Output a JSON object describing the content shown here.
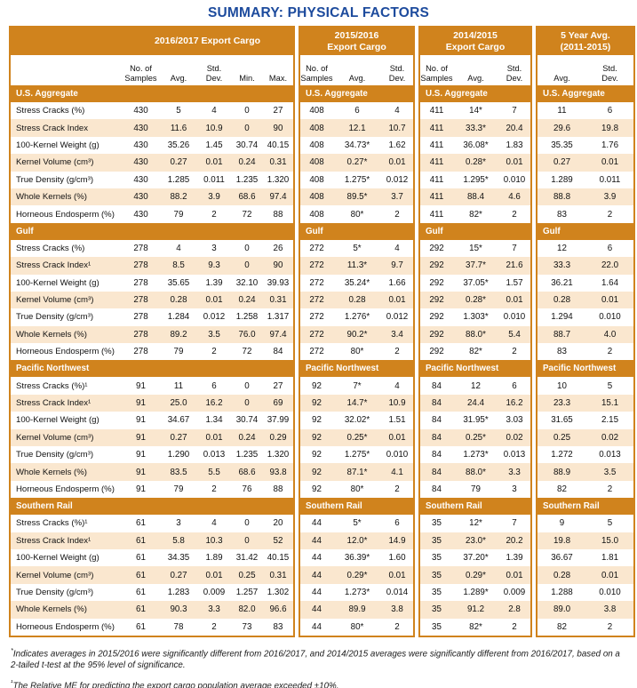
{
  "title": "SUMMARY: PHYSICAL FACTORS",
  "colors": {
    "accent_orange": "#d0831d",
    "row_peach": "#fae7cf",
    "title_blue": "#1d4b9d"
  },
  "panels": [
    {
      "key": "2016-2017",
      "header": "2016/2017 Export Cargo",
      "columns": [
        "No. of\nSamples",
        "Avg.",
        "Std.\nDev.",
        "Min.",
        "Max."
      ]
    },
    {
      "key": "2015-2016",
      "header": "2015/2016\nExport Cargo",
      "columns": [
        "No. of\nSamples",
        "Avg.",
        "Std.\nDev."
      ]
    },
    {
      "key": "2014-2015",
      "header": "2014/2015\nExport Cargo",
      "columns": [
        "No. of\nSamples",
        "Avg.",
        "Std.\nDev."
      ]
    },
    {
      "key": "5-year-avg",
      "header": "5 Year Avg.\n(2011-2015)",
      "columns": [
        "Avg.",
        "Std.\nDev."
      ]
    }
  ],
  "sections": [
    {
      "name": "U.S. Aggregate",
      "rows": [
        {
          "label": "Stress Cracks (%)",
          "values": {
            "p1": [
              "430",
              "5",
              "4",
              "0",
              "27"
            ],
            "p2": [
              "408",
              "6",
              "4"
            ],
            "p3": [
              "411",
              "14*",
              "7"
            ],
            "p4": [
              "11",
              "6"
            ]
          }
        },
        {
          "label": "Stress Crack Index",
          "values": {
            "p1": [
              "430",
              "11.6",
              "10.9",
              "0",
              "90"
            ],
            "p2": [
              "408",
              "12.1",
              "10.7"
            ],
            "p3": [
              "411",
              "33.3*",
              "20.4"
            ],
            "p4": [
              "29.6",
              "19.8"
            ]
          }
        },
        {
          "label": "100-Kernel Weight (g)",
          "values": {
            "p1": [
              "430",
              "35.26",
              "1.45",
              "30.74",
              "40.15"
            ],
            "p2": [
              "408",
              "34.73*",
              "1.62"
            ],
            "p3": [
              "411",
              "36.08*",
              "1.83"
            ],
            "p4": [
              "35.35",
              "1.76"
            ]
          }
        },
        {
          "label": "Kernel Volume (cm³)",
          "values": {
            "p1": [
              "430",
              "0.27",
              "0.01",
              "0.24",
              "0.31"
            ],
            "p2": [
              "408",
              "0.27*",
              "0.01"
            ],
            "p3": [
              "411",
              "0.28*",
              "0.01"
            ],
            "p4": [
              "0.27",
              "0.01"
            ]
          }
        },
        {
          "label": "True Density (g/cm³)",
          "values": {
            "p1": [
              "430",
              "1.285",
              "0.011",
              "1.235",
              "1.320"
            ],
            "p2": [
              "408",
              "1.275*",
              "0.012"
            ],
            "p3": [
              "411",
              "1.295*",
              "0.010"
            ],
            "p4": [
              "1.289",
              "0.011"
            ]
          }
        },
        {
          "label": "Whole Kernels (%)",
          "values": {
            "p1": [
              "430",
              "88.2",
              "3.9",
              "68.6",
              "97.4"
            ],
            "p2": [
              "408",
              "89.5*",
              "3.7"
            ],
            "p3": [
              "411",
              "88.4",
              "4.6"
            ],
            "p4": [
              "88.8",
              "3.9"
            ]
          }
        },
        {
          "label": "Horneous Endosperm (%)",
          "values": {
            "p1": [
              "430",
              "79",
              "2",
              "72",
              "88"
            ],
            "p2": [
              "408",
              "80*",
              "2"
            ],
            "p3": [
              "411",
              "82*",
              "2"
            ],
            "p4": [
              "83",
              "2"
            ]
          }
        }
      ]
    },
    {
      "name": "Gulf",
      "rows": [
        {
          "label": "Stress Cracks (%)",
          "values": {
            "p1": [
              "278",
              "4",
              "3",
              "0",
              "26"
            ],
            "p2": [
              "272",
              "5*",
              "4"
            ],
            "p3": [
              "292",
              "15*",
              "7"
            ],
            "p4": [
              "12",
              "6"
            ]
          }
        },
        {
          "label": "Stress Crack Index¹",
          "values": {
            "p1": [
              "278",
              "8.5",
              "9.3",
              "0",
              "90"
            ],
            "p2": [
              "272",
              "11.3*",
              "9.7"
            ],
            "p3": [
              "292",
              "37.7*",
              "21.6"
            ],
            "p4": [
              "33.3",
              "22.0"
            ]
          }
        },
        {
          "label": "100-Kernel Weight (g)",
          "values": {
            "p1": [
              "278",
              "35.65",
              "1.39",
              "32.10",
              "39.93"
            ],
            "p2": [
              "272",
              "35.24*",
              "1.66"
            ],
            "p3": [
              "292",
              "37.05*",
              "1.57"
            ],
            "p4": [
              "36.21",
              "1.64"
            ]
          }
        },
        {
          "label": "Kernel Volume (cm³)",
          "values": {
            "p1": [
              "278",
              "0.28",
              "0.01",
              "0.24",
              "0.31"
            ],
            "p2": [
              "272",
              "0.28",
              "0.01"
            ],
            "p3": [
              "292",
              "0.28*",
              "0.01"
            ],
            "p4": [
              "0.28",
              "0.01"
            ]
          }
        },
        {
          "label": "True Density (g/cm³)",
          "values": {
            "p1": [
              "278",
              "1.284",
              "0.012",
              "1.258",
              "1.317"
            ],
            "p2": [
              "272",
              "1.276*",
              "0.012"
            ],
            "p3": [
              "292",
              "1.303*",
              "0.010"
            ],
            "p4": [
              "1.294",
              "0.010"
            ]
          }
        },
        {
          "label": "Whole Kernels (%)",
          "values": {
            "p1": [
              "278",
              "89.2",
              "3.5",
              "76.0",
              "97.4"
            ],
            "p2": [
              "272",
              "90.2*",
              "3.4"
            ],
            "p3": [
              "292",
              "88.0*",
              "5.4"
            ],
            "p4": [
              "88.7",
              "4.0"
            ]
          }
        },
        {
          "label": "Horneous Endosperm (%)",
          "values": {
            "p1": [
              "278",
              "79",
              "2",
              "72",
              "84"
            ],
            "p2": [
              "272",
              "80*",
              "2"
            ],
            "p3": [
              "292",
              "82*",
              "2"
            ],
            "p4": [
              "83",
              "2"
            ]
          }
        }
      ]
    },
    {
      "name": "Pacific Northwest",
      "rows": [
        {
          "label": "Stress Cracks (%)¹",
          "values": {
            "p1": [
              "91",
              "11",
              "6",
              "0",
              "27"
            ],
            "p2": [
              "92",
              "7*",
              "4"
            ],
            "p3": [
              "84",
              "12",
              "6"
            ],
            "p4": [
              "10",
              "5"
            ]
          }
        },
        {
          "label": "Stress Crack Index¹",
          "values": {
            "p1": [
              "91",
              "25.0",
              "16.2",
              "0",
              "69"
            ],
            "p2": [
              "92",
              "14.7*",
              "10.9"
            ],
            "p3": [
              "84",
              "24.4",
              "16.2"
            ],
            "p4": [
              "23.3",
              "15.1"
            ]
          }
        },
        {
          "label": "100-Kernel Weight (g)",
          "values": {
            "p1": [
              "91",
              "34.67",
              "1.34",
              "30.74",
              "37.99"
            ],
            "p2": [
              "92",
              "32.02*",
              "1.51"
            ],
            "p3": [
              "84",
              "31.95*",
              "3.03"
            ],
            "p4": [
              "31.65",
              "2.15"
            ]
          }
        },
        {
          "label": "Kernel Volume (cm³)",
          "values": {
            "p1": [
              "91",
              "0.27",
              "0.01",
              "0.24",
              "0.29"
            ],
            "p2": [
              "92",
              "0.25*",
              "0.01"
            ],
            "p3": [
              "84",
              "0.25*",
              "0.02"
            ],
            "p4": [
              "0.25",
              "0.02"
            ]
          }
        },
        {
          "label": "True Density (g/cm³)",
          "values": {
            "p1": [
              "91",
              "1.290",
              "0.013",
              "1.235",
              "1.320"
            ],
            "p2": [
              "92",
              "1.275*",
              "0.010"
            ],
            "p3": [
              "84",
              "1.273*",
              "0.013"
            ],
            "p4": [
              "1.272",
              "0.013"
            ]
          }
        },
        {
          "label": "Whole Kernels (%)",
          "values": {
            "p1": [
              "91",
              "83.5",
              "5.5",
              "68.6",
              "93.8"
            ],
            "p2": [
              "92",
              "87.1*",
              "4.1"
            ],
            "p3": [
              "84",
              "88.0*",
              "3.3"
            ],
            "p4": [
              "88.9",
              "3.5"
            ]
          }
        },
        {
          "label": "Horneous Endosperm (%)",
          "values": {
            "p1": [
              "91",
              "79",
              "2",
              "76",
              "88"
            ],
            "p2": [
              "92",
              "80*",
              "2"
            ],
            "p3": [
              "84",
              "79",
              "3"
            ],
            "p4": [
              "82",
              "2"
            ]
          }
        }
      ]
    },
    {
      "name": "Southern Rail",
      "rows": [
        {
          "label": "Stress Cracks (%)¹",
          "values": {
            "p1": [
              "61",
              "3",
              "4",
              "0",
              "20"
            ],
            "p2": [
              "44",
              "5*",
              "6"
            ],
            "p3": [
              "35",
              "12*",
              "7"
            ],
            "p4": [
              "9",
              "5"
            ]
          }
        },
        {
          "label": "Stress Crack Index¹",
          "values": {
            "p1": [
              "61",
              "5.8",
              "10.3",
              "0",
              "52"
            ],
            "p2": [
              "44",
              "12.0*",
              "14.9"
            ],
            "p3": [
              "35",
              "23.0*",
              "20.2"
            ],
            "p4": [
              "19.8",
              "15.0"
            ]
          }
        },
        {
          "label": "100-Kernel Weight (g)",
          "values": {
            "p1": [
              "61",
              "34.35",
              "1.89",
              "31.42",
              "40.15"
            ],
            "p2": [
              "44",
              "36.39*",
              "1.60"
            ],
            "p3": [
              "35",
              "37.20*",
              "1.39"
            ],
            "p4": [
              "36.67",
              "1.81"
            ]
          }
        },
        {
          "label": "Kernel Volume (cm³)",
          "values": {
            "p1": [
              "61",
              "0.27",
              "0.01",
              "0.25",
              "0.31"
            ],
            "p2": [
              "44",
              "0.29*",
              "0.01"
            ],
            "p3": [
              "35",
              "0.29*",
              "0.01"
            ],
            "p4": [
              "0.28",
              "0.01"
            ]
          }
        },
        {
          "label": "True Density (g/cm³)",
          "values": {
            "p1": [
              "61",
              "1.283",
              "0.009",
              "1.257",
              "1.302"
            ],
            "p2": [
              "44",
              "1.273*",
              "0.014"
            ],
            "p3": [
              "35",
              "1.289*",
              "0.009"
            ],
            "p4": [
              "1.288",
              "0.010"
            ]
          }
        },
        {
          "label": "Whole Kernels (%)",
          "values": {
            "p1": [
              "61",
              "90.3",
              "3.3",
              "82.0",
              "96.6"
            ],
            "p2": [
              "44",
              "89.9",
              "3.8"
            ],
            "p3": [
              "35",
              "91.2",
              "2.8"
            ],
            "p4": [
              "89.0",
              "3.8"
            ]
          }
        },
        {
          "label": "Horneous Endosperm (%)",
          "values": {
            "p1": [
              "61",
              "78",
              "2",
              "73",
              "83"
            ],
            "p2": [
              "44",
              "80*",
              "2"
            ],
            "p3": [
              "35",
              "82*",
              "2"
            ],
            "p4": [
              "82",
              "2"
            ]
          }
        }
      ]
    }
  ],
  "footnotes": [
    {
      "marker": "*",
      "text": "Indicates averages in 2015/2016 were significantly different from 2016/2017, and 2014/2015 averages were significantly different from 2016/2017, based on a 2-tailed t-test at the 95% level of significance."
    },
    {
      "marker": "¹",
      "text": "The Relative ME for predicting the export cargo population average exceeded ±10%."
    }
  ]
}
